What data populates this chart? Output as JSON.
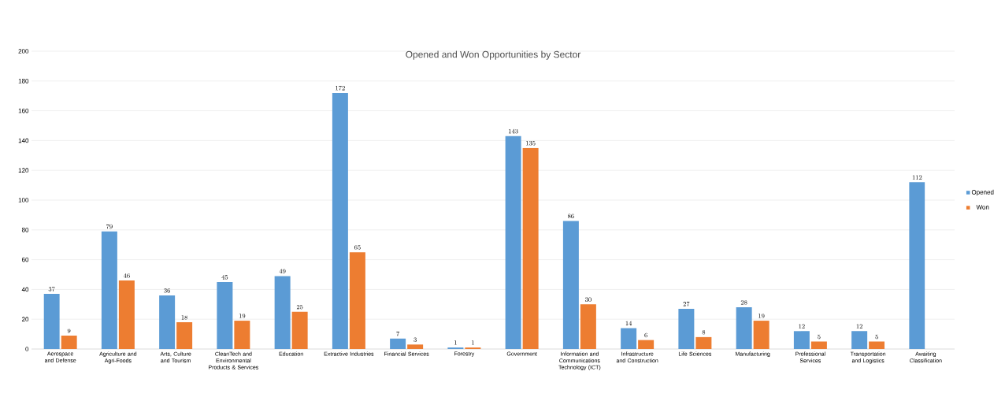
{
  "chart_data": {
    "type": "bar",
    "title": "Opened and Won Opportunities by Sector",
    "categories": [
      "Aerospace and Defense",
      "Agriculture and Agri-Foods",
      "Arts, Culture and Tourism",
      "CleanTech and Environmental Products & Services",
      "Education",
      "Extractive Industries",
      "Financial Services",
      "Forestry",
      "Government",
      "Information and Communications Technology (ICT)",
      "Infrastructure and Construction",
      "Life Sciences",
      "Manufacturing",
      "Professional Services",
      "Transportation and Logistics",
      "Awaiting Classification"
    ],
    "series": [
      {
        "name": "Opened",
        "color": "#5b9bd5",
        "values": [
          37,
          79,
          36,
          45,
          49,
          172,
          7,
          1,
          143,
          86,
          14,
          27,
          28,
          12,
          12,
          112
        ]
      },
      {
        "name": "Won",
        "color": "#ed7d31",
        "values": [
          9,
          46,
          18,
          19,
          25,
          65,
          3,
          1,
          135,
          30,
          6,
          8,
          19,
          5,
          5,
          null
        ]
      }
    ],
    "ylim": [
      0,
      200
    ],
    "yticks": [
      0,
      20,
      40,
      60,
      80,
      100,
      120,
      140,
      160,
      180,
      200
    ],
    "grid": "y",
    "legend": "right",
    "data_labels": true
  }
}
